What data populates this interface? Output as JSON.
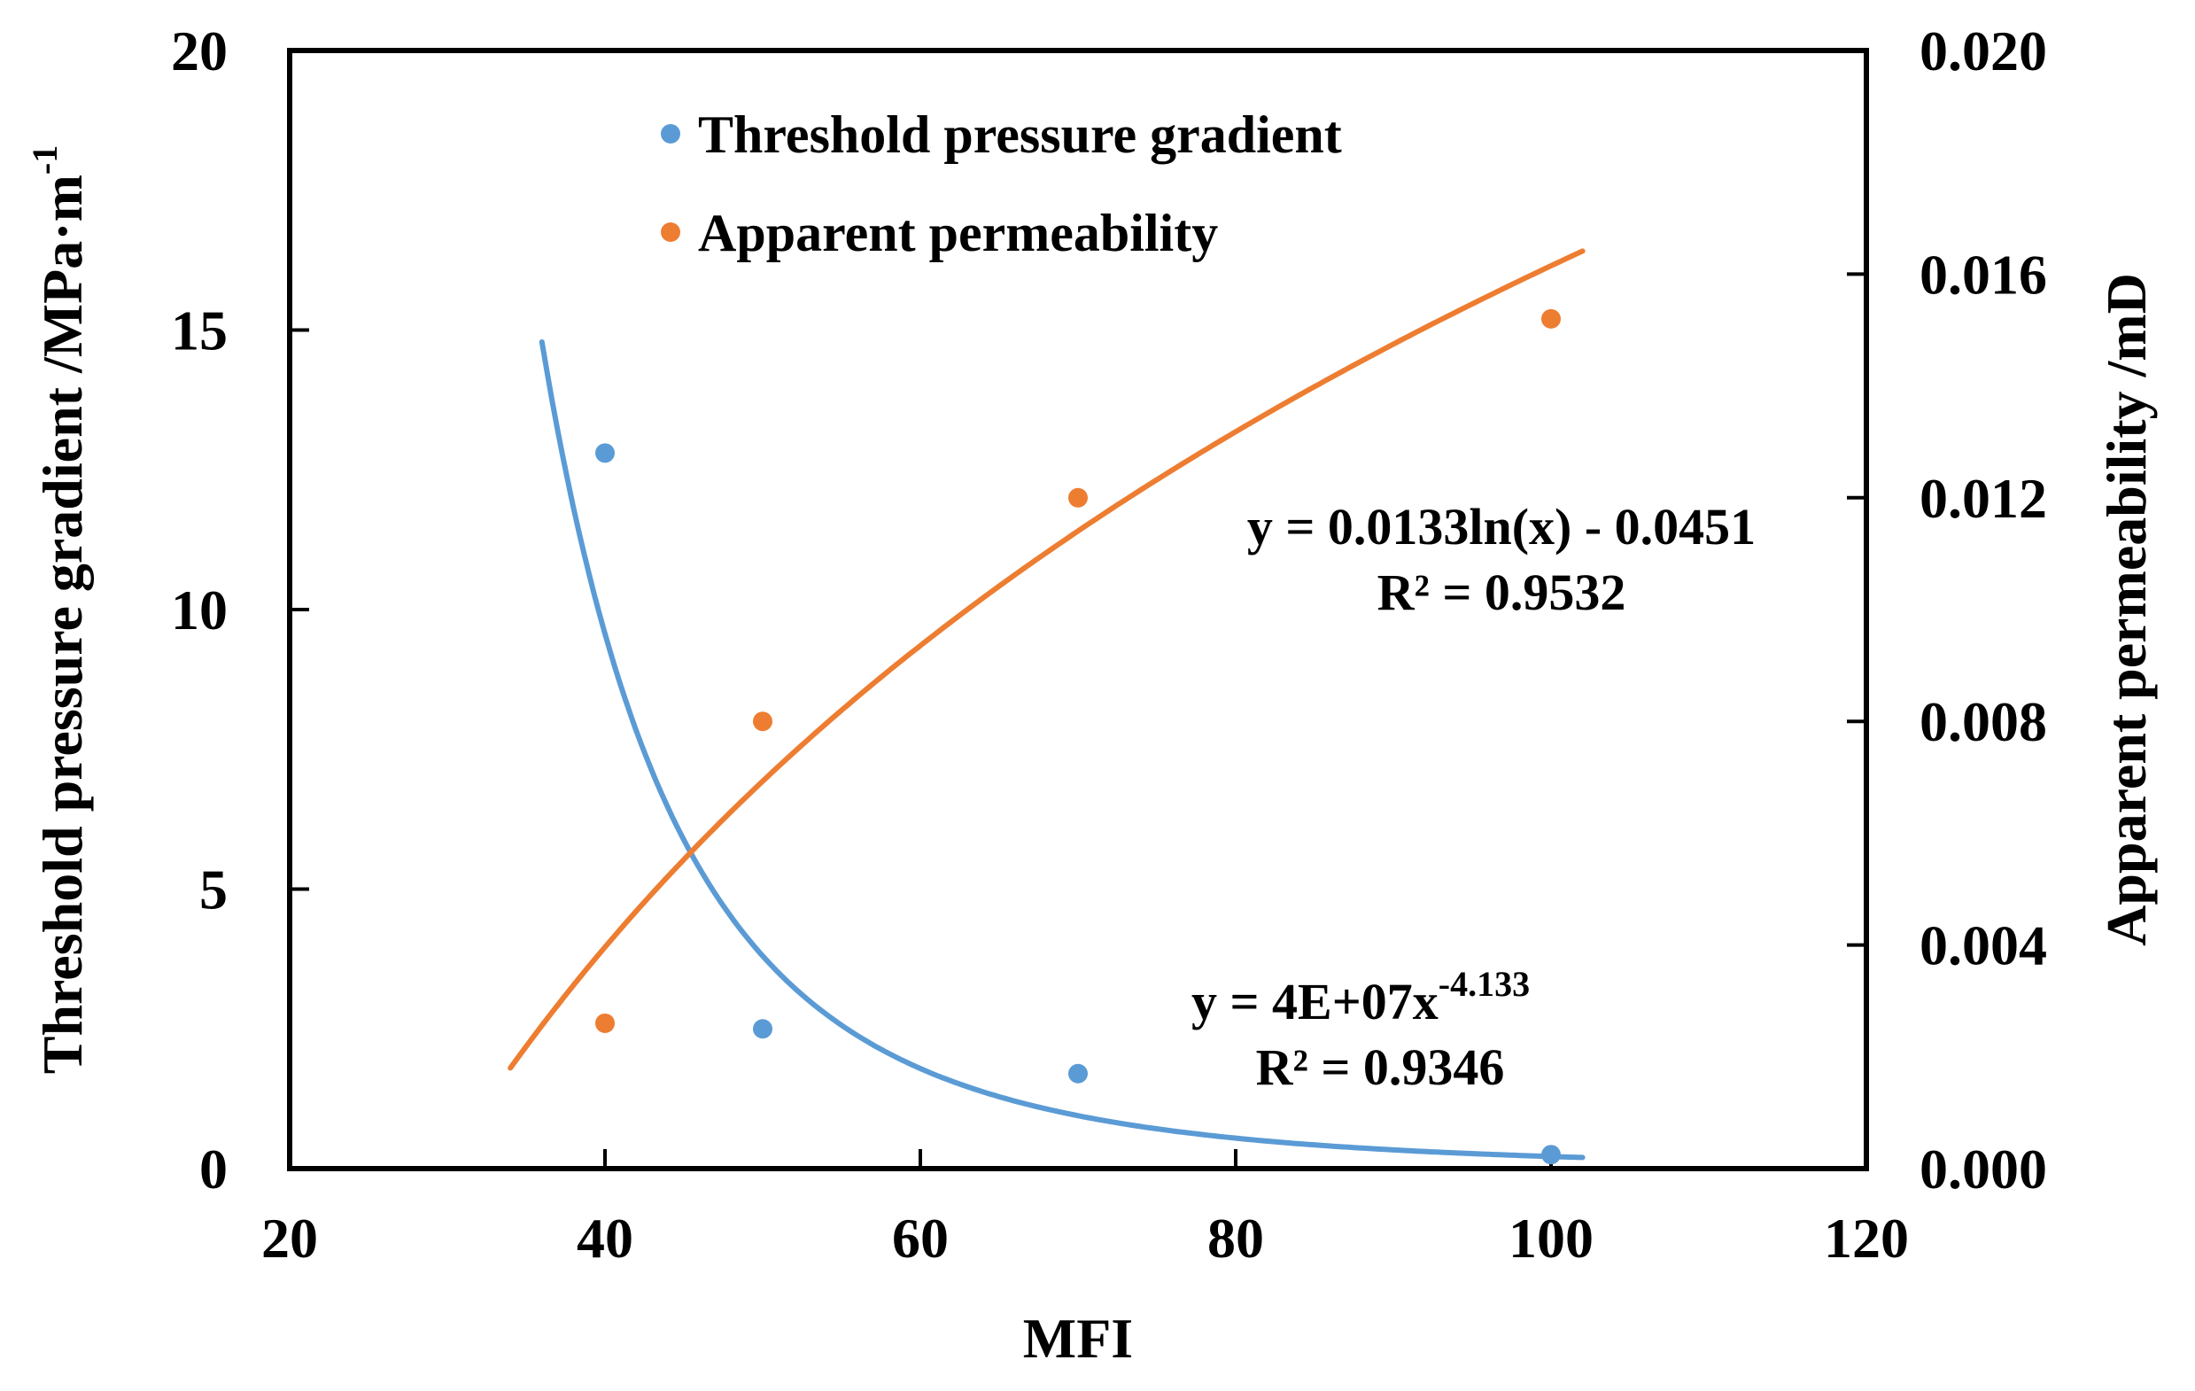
{
  "chart_data": {
    "type": "scatter",
    "title": "",
    "xlabel": "MFI",
    "ylabel_left": "Threshold pressure gradient /MPa·m",
    "ylabel_left_sup": "-1",
    "ylabel_right": "Apparent permeability /mD",
    "xlim": [
      20,
      120
    ],
    "xticks": [
      "20",
      "40",
      "60",
      "80",
      "100",
      "120"
    ],
    "ylim_left": [
      0,
      20
    ],
    "yticks_left": [
      "0",
      "5",
      "10",
      "15",
      "20"
    ],
    "ylim_right": [
      0,
      0.02
    ],
    "yticks_right": [
      "0.000",
      "0.004",
      "0.008",
      "0.012",
      "0.016",
      "0.020"
    ],
    "grid": false,
    "legend_position": "top-center",
    "series": [
      {
        "name": "Threshold pressure gradient",
        "axis": "left",
        "color": "#5B9BD5",
        "x": [
          40,
          50,
          70,
          100
        ],
        "y": [
          12.8,
          2.5,
          1.7,
          0.25
        ],
        "trendline": {
          "type": "power",
          "coef": 40000000,
          "exponent": -4.133,
          "x_range": [
            36,
            102
          ],
          "equation": "y = 4E+07x",
          "equation_sup": "-4.133",
          "r2": "R² = 0.9346"
        }
      },
      {
        "name": "Apparent permeability",
        "axis": "right",
        "color": "#ED7D31",
        "x": [
          40,
          50,
          70,
          100
        ],
        "y": [
          0.0026,
          0.008,
          0.012,
          0.0152
        ],
        "trendline": {
          "type": "log",
          "a": 0.0133,
          "b": -0.0451,
          "x_range": [
            34,
            102
          ],
          "equation": "y = 0.0133ln(x) - 0.0451",
          "r2": "R² = 0.9532"
        }
      }
    ]
  }
}
